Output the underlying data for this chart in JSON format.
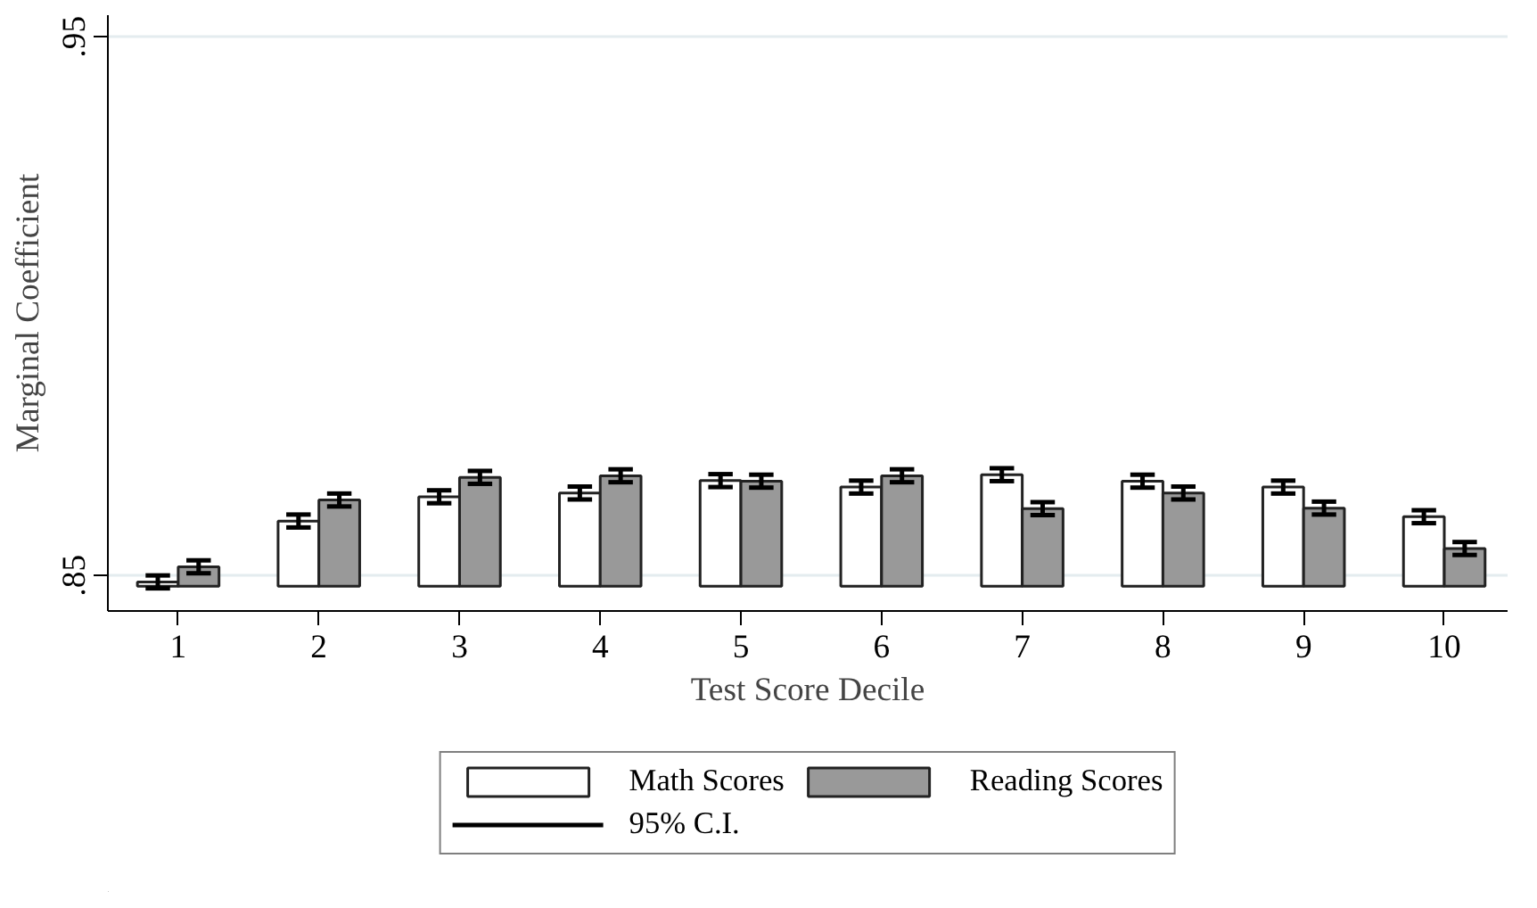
{
  "chart_data": {
    "type": "bar",
    "xlabel": "Test Score Decile",
    "ylabel": "Marginal Coefficient",
    "categories": [
      "1",
      "2",
      "3",
      "4",
      "5",
      "6",
      "7",
      "8",
      "9",
      "10"
    ],
    "series": [
      {
        "name": "Math Scores",
        "color": "#ffffff",
        "base": [
          0.848,
          0.848,
          0.848,
          0.848,
          0.848,
          0.848,
          0.848,
          0.848,
          0.848,
          0.848
        ],
        "values": [
          0.0008,
          0.0121,
          0.0166,
          0.0173,
          0.0196,
          0.0184,
          0.0207,
          0.0195,
          0.0184,
          0.0129
        ],
        "errors": [
          0.0012,
          0.0012,
          0.0012,
          0.0012,
          0.0012,
          0.0012,
          0.0012,
          0.0012,
          0.0012,
          0.0012
        ]
      },
      {
        "name": "Reading Scores",
        "color": "#999999",
        "base": [
          0.848,
          0.848,
          0.848,
          0.848,
          0.848,
          0.848,
          0.848,
          0.848,
          0.848,
          0.848
        ],
        "values": [
          0.0036,
          0.016,
          0.0202,
          0.0205,
          0.0195,
          0.0205,
          0.0144,
          0.0173,
          0.0145,
          0.007
        ],
        "errors": [
          0.0012,
          0.0012,
          0.0012,
          0.0012,
          0.0012,
          0.0012,
          0.0012,
          0.0012,
          0.0012,
          0.0012
        ]
      }
    ],
    "ylim": [
      0.8434,
      0.954
    ],
    "yticks": [
      {
        "value": 0.85,
        "label": ".85"
      },
      {
        "value": 0.95,
        "label": ".95"
      }
    ],
    "grid": "y",
    "legend": "bottom",
    "annotations": [
      "95% C.I."
    ]
  }
}
